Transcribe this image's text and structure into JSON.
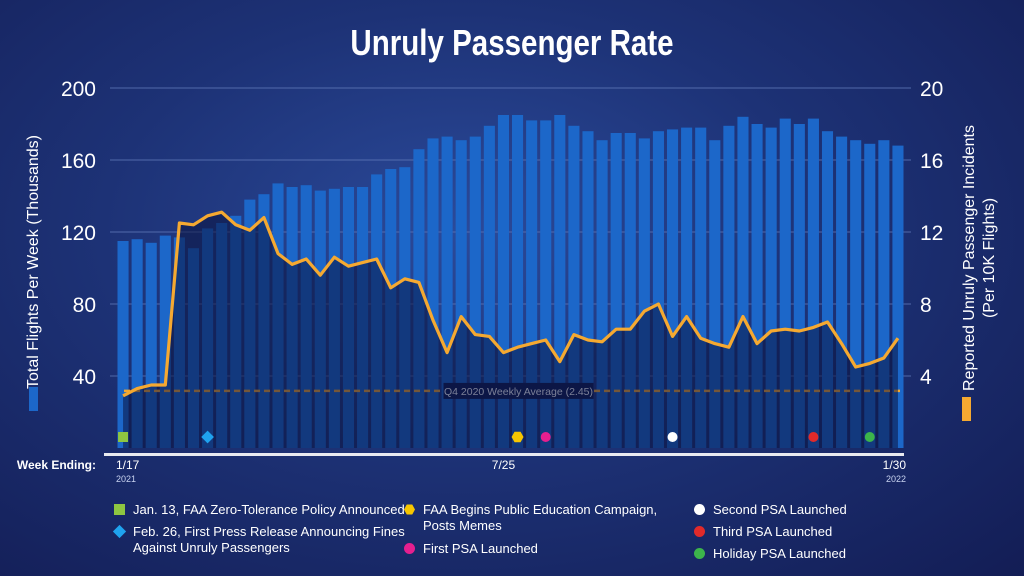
{
  "title": "Unruly Passenger Rate",
  "colors": {
    "bars": "#1c67c9",
    "line": "#f5a931",
    "avg_line": "#f5a931",
    "gridline": "#5f78b8"
  },
  "chart_data": {
    "type": "bar",
    "ylabel": "Total Flights Per Week (Thousands)",
    "y2label_lines": [
      "Reported Unruly Passenger Incidents",
      "(Per 10K Flights)"
    ],
    "ylim": [
      0,
      200
    ],
    "y2lim": [
      0,
      20
    ],
    "yticks": [
      "40",
      "80",
      "120",
      "160",
      "200"
    ],
    "y2ticks": [
      "4",
      "8",
      "12",
      "16",
      "20"
    ],
    "x_axis_title": "Week Ending:",
    "x_tick_labels": [
      {
        "index": 0,
        "label": "1/17",
        "sub": "2021"
      },
      {
        "index": 27,
        "label": "7/25",
        "sub": ""
      },
      {
        "index": 54,
        "label": "1/30",
        "sub": "2022"
      }
    ],
    "series": [
      {
        "name": "Total Flights Per Week",
        "type": "bar",
        "values": [
          115,
          116,
          114,
          118,
          117,
          111,
          122,
          125,
          129,
          138,
          141,
          147,
          145,
          146,
          143,
          144,
          145,
          145,
          152,
          155,
          156,
          166,
          172,
          173,
          171,
          173,
          179,
          185,
          185,
          182,
          182,
          185,
          179,
          176,
          171,
          175,
          175,
          172,
          176,
          177,
          178,
          178,
          171,
          179,
          184,
          180,
          178,
          183,
          180,
          183,
          176,
          173,
          171,
          169,
          171,
          168
        ]
      },
      {
        "name": "Reported Unruly Passenger Incidents",
        "type": "line",
        "values": [
          2.9,
          3.3,
          3.5,
          3.5,
          12.5,
          12.4,
          12.9,
          13.1,
          12.4,
          12.1,
          12.8,
          10.8,
          10.2,
          10.5,
          9.6,
          10.6,
          10.1,
          10.3,
          10.5,
          8.9,
          9.4,
          9.2,
          7.1,
          5.3,
          7.3,
          6.3,
          6.2,
          5.3,
          5.6,
          5.8,
          6.0,
          4.8,
          6.3,
          6.0,
          5.9,
          6.6,
          6.6,
          7.6,
          8.0,
          6.2,
          7.3,
          6.1,
          5.8,
          5.6,
          7.3,
          5.8,
          6.5,
          6.6,
          6.5,
          6.7,
          7.0,
          5.8,
          4.5,
          4.7,
          5.0,
          6.1
        ]
      }
    ],
    "reference_line": {
      "label": "Q4 2020 Weekly Average (2.45)",
      "value": 2.45
    },
    "event_markers": [
      {
        "index": 0,
        "shape": "square",
        "color": "#8ec641"
      },
      {
        "index": 6,
        "shape": "diamond",
        "color": "#1fa3ef"
      },
      {
        "index": 28,
        "shape": "hex",
        "color": "#f7c600"
      },
      {
        "index": 30,
        "shape": "circle",
        "color": "#e51f8f"
      },
      {
        "index": 39,
        "shape": "circle",
        "color": "#ffffff"
      },
      {
        "index": 49,
        "shape": "circle",
        "color": "#e12a2a"
      },
      {
        "index": 53,
        "shape": "circle",
        "color": "#3cb44b"
      }
    ]
  },
  "legend": {
    "items": [
      {
        "shape": "square",
        "color": "#8ec641",
        "lines": [
          "Jan. 13, FAA Zero-Tolerance Policy Announced"
        ]
      },
      {
        "shape": "diamond",
        "color": "#1fa3ef",
        "lines": [
          "Feb. 26, First Press Release Announcing Fines",
          "Against Unruly Passengers"
        ]
      },
      {
        "shape": "hex",
        "color": "#f7c600",
        "lines": [
          "FAA Begins Public Education Campaign,",
          "Posts Memes"
        ]
      },
      {
        "shape": "circle",
        "color": "#e51f8f",
        "lines": [
          "First PSA Launched"
        ]
      },
      {
        "shape": "circle",
        "color": "#ffffff",
        "lines": [
          "Second PSA Launched"
        ]
      },
      {
        "shape": "circle",
        "color": "#e12a2a",
        "lines": [
          "Third PSA Launched"
        ]
      },
      {
        "shape": "circle",
        "color": "#3cb44b",
        "lines": [
          "Holiday PSA Launched"
        ]
      }
    ]
  }
}
